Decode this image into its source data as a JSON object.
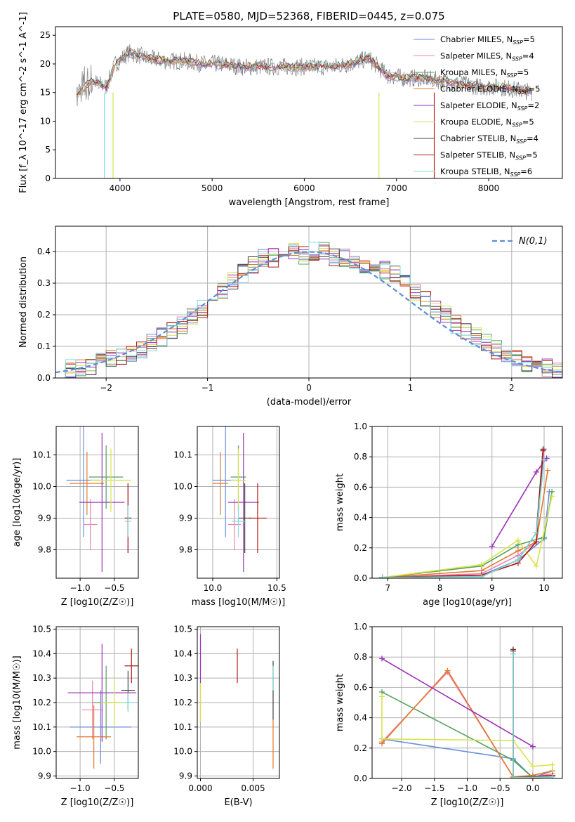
{
  "figure": {
    "title": "PLATE=0580, MJD=52368, FIBERID=0445, z=0.075"
  },
  "colors": {
    "Chabrier MILES": "#6b8fdc",
    "Salpeter MILES": "#e882b4",
    "Kroupa MILES": "#56a15e",
    "Chabrier ELODIE": "#e07a2e",
    "Salpeter ELODIE": "#9b2fb4",
    "Kroupa ELODIE": "#d9e24a",
    "Chabrier STELIB": "#444444",
    "Salpeter STELIB": "#b01b1b",
    "Kroupa STELIB": "#7fdcdc",
    "model_normal": "#5b8fd9",
    "grid": "#b0b0b0"
  },
  "chart_data": [
    {
      "id": "spectrum",
      "type": "line",
      "xlabel": "wavelength [Angstrom, rest frame]",
      "ylabel": "Flux [f_λ 10^-17 erg cm^-2 s^-1 A^-1]",
      "xlim": [
        3300,
        8800
      ],
      "ylim": [
        0,
        26.5
      ],
      "xticks": [
        4000,
        5000,
        6000,
        7000,
        8000
      ],
      "yticks": [
        0,
        5,
        10,
        15,
        20,
        25
      ],
      "grid": false,
      "legend_position": "top-right",
      "legend": [
        {
          "name": "Chabrier MILES",
          "nssp": "5"
        },
        {
          "name": "Salpeter MILES",
          "nssp": "4"
        },
        {
          "name": "Kroupa MILES",
          "nssp": "5"
        },
        {
          "name": "Chabrier ELODIE",
          "nssp": "5"
        },
        {
          "name": "Salpeter ELODIE",
          "nssp": "2"
        },
        {
          "name": "Kroupa ELODIE",
          "nssp": "5"
        },
        {
          "name": "Chabrier STELIB",
          "nssp": "4"
        },
        {
          "name": "Salpeter STELIB",
          "nssp": "5"
        },
        {
          "name": "Kroupa STELIB",
          "nssp": "6"
        }
      ],
      "data_points": {
        "x": [
          3550,
          3700,
          3850,
          3950,
          4100,
          4300,
          4500,
          4700,
          4900,
          5100,
          5300,
          5500,
          5700,
          5900,
          6100,
          6300,
          6500,
          6700,
          6900,
          7100,
          7300,
          7500,
          7700,
          7900,
          8100,
          8300,
          8500
        ],
        "y": [
          15,
          17,
          16,
          20,
          22,
          21,
          20.5,
          20.5,
          20,
          20,
          19.5,
          19.5,
          19.5,
          19.5,
          19.5,
          19.5,
          20,
          21,
          18,
          17.5,
          17.5,
          17,
          16.5,
          16,
          16,
          15.5,
          15
        ]
      }
    },
    {
      "id": "residuals",
      "type": "line",
      "xlabel": "(data-model)/error",
      "ylabel": "Normed distribution",
      "xlim": [
        -2.5,
        2.5
      ],
      "ylim": [
        0,
        0.48
      ],
      "xticks": [
        -2,
        -1,
        0,
        1,
        2
      ],
      "yticks": [
        0.0,
        0.1,
        0.2,
        0.3,
        0.4
      ],
      "grid": true,
      "legend_position": "top-right",
      "legend": [
        "N(0,1)"
      ],
      "bins": [
        -2.5,
        -2.4,
        -2.3,
        -2.2,
        -2.1,
        -2.0,
        -1.9,
        -1.8,
        -1.7,
        -1.6,
        -1.5,
        -1.4,
        -1.3,
        -1.2,
        -1.1,
        -1.0,
        -0.9,
        -0.8,
        -0.7,
        -0.6,
        -0.5,
        -0.4,
        -0.3,
        -0.2,
        -0.1,
        0.0,
        0.1,
        0.2,
        0.3,
        0.4,
        0.5,
        0.6,
        0.7,
        0.8,
        0.9,
        1.0,
        1.1,
        1.2,
        1.3,
        1.4,
        1.5,
        1.6,
        1.7,
        1.8,
        1.9,
        2.0,
        2.1,
        2.2,
        2.3,
        2.4,
        2.5
      ],
      "hist_mean": [
        0.02,
        0.03,
        0.03,
        0.04,
        0.05,
        0.06,
        0.07,
        0.08,
        0.09,
        0.11,
        0.13,
        0.15,
        0.17,
        0.2,
        0.22,
        0.25,
        0.28,
        0.31,
        0.33,
        0.36,
        0.38,
        0.38,
        0.4,
        0.4,
        0.39,
        0.4,
        0.4,
        0.38,
        0.38,
        0.37,
        0.36,
        0.35,
        0.34,
        0.33,
        0.3,
        0.27,
        0.25,
        0.22,
        0.2,
        0.17,
        0.15,
        0.13,
        0.11,
        0.09,
        0.07,
        0.06,
        0.05,
        0.04,
        0.03,
        0.02
      ]
    },
    {
      "id": "age-vs-Z",
      "type": "scatter",
      "xlabel": "Z [log10(Z/Z☉)]",
      "ylabel": "age  [log10(age/yr)]",
      "xlim": [
        -1.35,
        -0.15
      ],
      "ylim": [
        9.71,
        10.19
      ],
      "xticks": [
        -1.0,
        -0.5
      ],
      "yticks": [
        9.8,
        9.9,
        10.0,
        10.1
      ],
      "grid": true,
      "points": [
        {
          "series": "Chabrier MILES",
          "x": -0.95,
          "y": 10.02,
          "xerr": 0.25,
          "yerr": 0.18
        },
        {
          "series": "Salpeter MILES",
          "x": -0.85,
          "y": 9.88,
          "xerr": 0.1,
          "yerr": 0.08
        },
        {
          "series": "Kroupa MILES",
          "x": -0.62,
          "y": 10.03,
          "xerr": 0.25,
          "yerr": 0.1
        },
        {
          "series": "Chabrier ELODIE",
          "x": -0.9,
          "y": 10.01,
          "xerr": 0.25,
          "yerr": 0.1
        },
        {
          "series": "Salpeter ELODIE",
          "x": -0.68,
          "y": 9.95,
          "xerr": 0.33,
          "yerr": 0.22
        },
        {
          "series": "Kroupa ELODIE",
          "x": -0.55,
          "y": 10.02,
          "xerr": 0.3,
          "yerr": 0.1
        },
        {
          "series": "Chabrier STELIB",
          "x": -0.3,
          "y": 9.9,
          "xerr": 0.05,
          "yerr": 0.11
        },
        {
          "series": "Salpeter STELIB",
          "x": -0.3,
          "y": 9.9,
          "xerr": 0.05,
          "yerr": 0.11
        },
        {
          "series": "Kroupa STELIB",
          "x": -0.3,
          "y": 9.89,
          "xerr": 0.05,
          "yerr": 0.05
        }
      ]
    },
    {
      "id": "age-vs-mass",
      "type": "scatter",
      "xlabel": "mass [log10(M/M☉)]",
      "ylabel": "",
      "xlim": [
        9.88,
        10.52
      ],
      "ylim": [
        9.71,
        10.19
      ],
      "xticks": [
        10.0,
        10.5
      ],
      "yticks": [
        9.8,
        9.9,
        10.0,
        10.1
      ],
      "grid": true,
      "points": [
        {
          "series": "Chabrier MILES",
          "x": 10.1,
          "y": 10.02,
          "xerr": 0.1,
          "yerr": 0.18
        },
        {
          "series": "Salpeter MILES",
          "x": 10.17,
          "y": 9.88,
          "xerr": 0.05,
          "yerr": 0.08
        },
        {
          "series": "Kroupa MILES",
          "x": 10.2,
          "y": 10.03,
          "xerr": 0.06,
          "yerr": 0.1
        },
        {
          "series": "Chabrier ELODIE",
          "x": 10.06,
          "y": 10.01,
          "xerr": 0.06,
          "yerr": 0.1
        },
        {
          "series": "Salpeter ELODIE",
          "x": 10.24,
          "y": 9.95,
          "xerr": 0.12,
          "yerr": 0.22
        },
        {
          "series": "Kroupa ELODIE",
          "x": 10.2,
          "y": 10.02,
          "xerr": 0.06,
          "yerr": 0.1
        },
        {
          "series": "Chabrier STELIB",
          "x": 10.25,
          "y": 9.9,
          "xerr": 0.05,
          "yerr": 0.11
        },
        {
          "series": "Salpeter STELIB",
          "x": 10.35,
          "y": 9.9,
          "xerr": 0.07,
          "yerr": 0.11
        },
        {
          "series": "Kroupa STELIB",
          "x": 10.2,
          "y": 9.89,
          "xerr": 0.05,
          "yerr": 0.05
        }
      ]
    },
    {
      "id": "massweight-vs-age",
      "type": "line",
      "xlabel": "age  [log10(age/yr)]",
      "ylabel": "mass weight",
      "xlim": [
        6.7,
        10.35
      ],
      "ylim": [
        0,
        1.0
      ],
      "xticks": [
        7,
        8,
        9,
        10
      ],
      "yticks": [
        0.0,
        0.2,
        0.4,
        0.6,
        0.8,
        1.0
      ],
      "grid": true,
      "series": [
        {
          "series": "Chabrier MILES",
          "x": [
            6.9,
            8.8,
            9.5,
            10.0,
            10.1
          ],
          "y": [
            0.005,
            0.02,
            0.12,
            0.26,
            0.57
          ]
        },
        {
          "series": "Salpeter MILES",
          "x": [
            6.9,
            8.8,
            9.5,
            9.85,
            10.0
          ],
          "y": [
            0.005,
            0.03,
            0.15,
            0.24,
            0.85
          ]
        },
        {
          "series": "Kroupa MILES",
          "x": [
            6.9,
            8.8,
            9.5,
            10.0,
            10.15
          ],
          "y": [
            0.005,
            0.08,
            0.22,
            0.27,
            0.57
          ]
        },
        {
          "series": "Chabrier ELODIE",
          "x": [
            6.9,
            8.8,
            9.5,
            9.85,
            10.07
          ],
          "y": [
            0.005,
            0.05,
            0.18,
            0.24,
            0.71
          ]
        },
        {
          "series": "Salpeter ELODIE",
          "x": [
            9.0,
            9.85,
            10.05
          ],
          "y": [
            0.21,
            0.7,
            0.79
          ]
        },
        {
          "series": "Kroupa ELODIE",
          "x": [
            6.9,
            8.8,
            9.5,
            9.85,
            10.15
          ],
          "y": [
            0.005,
            0.09,
            0.25,
            0.08,
            0.54
          ]
        },
        {
          "series": "Chabrier STELIB",
          "x": [
            6.9,
            8.8,
            9.5,
            9.85,
            9.98
          ],
          "y": [
            0.005,
            0.01,
            0.12,
            0.3,
            0.85
          ]
        },
        {
          "series": "Salpeter STELIB",
          "x": [
            6.9,
            8.8,
            9.5,
            9.85,
            9.98
          ],
          "y": [
            0.005,
            0.02,
            0.1,
            0.24,
            0.84
          ]
        },
        {
          "series": "Kroupa STELIB",
          "x": [
            6.9,
            8.8,
            9.5,
            9.85,
            10.0
          ],
          "y": [
            0.005,
            0.01,
            0.12,
            0.3,
            0.78
          ]
        }
      ]
    },
    {
      "id": "mass-vs-Z",
      "type": "scatter",
      "xlabel": "Z [log10(Z/Z☉)]",
      "ylabel": "mass [log10(M/M☉)]",
      "xlim": [
        -1.35,
        -0.15
      ],
      "ylim": [
        9.89,
        10.51
      ],
      "xticks": [
        -1.0,
        -0.5
      ],
      "yticks": [
        9.9,
        10.0,
        10.1,
        10.2,
        10.3,
        10.4,
        10.5
      ],
      "grid": true,
      "points": [
        {
          "series": "Chabrier MILES",
          "x": -0.7,
          "y": 10.1,
          "xerr": 0.45,
          "yerr": 0.15
        },
        {
          "series": "Salpeter MILES",
          "x": -0.82,
          "y": 10.17,
          "xerr": 0.15,
          "yerr": 0.12
        },
        {
          "series": "Kroupa MILES",
          "x": -0.62,
          "y": 10.2,
          "xerr": 0.2,
          "yerr": 0.15
        },
        {
          "series": "Chabrier ELODIE",
          "x": -0.8,
          "y": 10.06,
          "xerr": 0.25,
          "yerr": 0.13
        },
        {
          "series": "Salpeter ELODIE",
          "x": -0.68,
          "y": 10.24,
          "xerr": 0.5,
          "yerr": 0.2
        },
        {
          "series": "Kroupa ELODIE",
          "x": -0.5,
          "y": 10.2,
          "xerr": 0.2,
          "yerr": 0.1
        },
        {
          "series": "Chabrier STELIB",
          "x": -0.3,
          "y": 10.25,
          "xerr": 0.1,
          "yerr": 0.08
        },
        {
          "series": "Salpeter STELIB",
          "x": -0.25,
          "y": 10.35,
          "xerr": 0.1,
          "yerr": 0.07
        },
        {
          "series": "Kroupa STELIB",
          "x": -0.3,
          "y": 10.2,
          "xerr": 0.1,
          "yerr": 0.04
        }
      ]
    },
    {
      "id": "mass-vs-EBV",
      "type": "scatter",
      "xlabel": "E(B-V)",
      "ylabel": "",
      "xlim": [
        -0.0003,
        0.0075
      ],
      "ylim": [
        9.89,
        10.51
      ],
      "xticks": [
        0.0,
        0.005
      ],
      "yticks": [
        9.9,
        10.0,
        10.1,
        10.2,
        10.3,
        10.4,
        10.5
      ],
      "grid": true,
      "points": [
        {
          "series": "Salpeter ELODIE",
          "x": 0.0,
          "y": 10.3,
          "yerr": 0.18
        },
        {
          "series": "Kroupa ELODIE",
          "x": 0.0,
          "y": 10.2,
          "yerr": 0.08
        },
        {
          "series": "Salpeter STELIB",
          "x": 0.0035,
          "y": 10.35,
          "yerr": 0.07
        },
        {
          "series": "Chabrier STELIB",
          "x": 0.0069,
          "y": 10.25,
          "yerr": 0.12
        },
        {
          "series": "Chabrier ELODIE",
          "x": 0.0069,
          "y": 10.03,
          "yerr": 0.1
        },
        {
          "series": "Kroupa STELIB",
          "x": 0.0069,
          "y": 10.3,
          "yerr": 0.05
        }
      ]
    },
    {
      "id": "massweight-vs-Z",
      "type": "line",
      "xlabel": "Z [log10(Z/Z☉)]",
      "ylabel": "mass weight",
      "xlim": [
        -2.45,
        0.45
      ],
      "ylim": [
        0,
        1.0
      ],
      "xticks": [
        -2.0,
        -1.5,
        -1.0,
        -0.5,
        0.0
      ],
      "yticks": [
        0.0,
        0.2,
        0.4,
        0.6,
        0.8,
        1.0
      ],
      "grid": true,
      "series": [
        {
          "series": "Chabrier MILES",
          "x": [
            -2.3,
            -0.3,
            0.0,
            0.3
          ],
          "y": [
            0.26,
            0.13,
            0.005,
            0.05
          ]
        },
        {
          "series": "Salpeter MILES",
          "x": [
            -2.3,
            -1.3,
            -0.3,
            0.0,
            0.3
          ],
          "y": [
            0.24,
            0.7,
            0.01,
            0.01,
            0.03
          ]
        },
        {
          "series": "Kroupa MILES",
          "x": [
            -2.3,
            -0.3,
            0.0,
            0.3
          ],
          "y": [
            0.57,
            0.12,
            0.005,
            0.01
          ]
        },
        {
          "series": "Chabrier ELODIE",
          "x": [
            -2.3,
            -1.3,
            -0.3,
            0.0,
            0.3
          ],
          "y": [
            0.23,
            0.71,
            0.01,
            0.02,
            0.05
          ]
        },
        {
          "series": "Salpeter ELODIE",
          "x": [
            -2.3,
            0.0
          ],
          "y": [
            0.79,
            0.21
          ]
        },
        {
          "series": "Kroupa ELODIE",
          "x": [
            -2.3,
            -2.3,
            -0.3,
            0.0,
            0.3,
            0.3
          ],
          "y": [
            0.54,
            0.26,
            0.25,
            0.08,
            0.09,
            0.01
          ]
        },
        {
          "series": "Chabrier STELIB",
          "x": [
            -0.3,
            -0.3,
            0.3
          ],
          "y": [
            0.85,
            0.005,
            0.01
          ]
        },
        {
          "series": "Salpeter STELIB",
          "x": [
            -0.3,
            -0.3,
            0.3
          ],
          "y": [
            0.84,
            0.005,
            0.02
          ]
        },
        {
          "series": "Kroupa STELIB",
          "x": [
            -0.3,
            -0.3,
            0.3
          ],
          "y": [
            0.82,
            0.005,
            0.01
          ]
        }
      ]
    }
  ]
}
